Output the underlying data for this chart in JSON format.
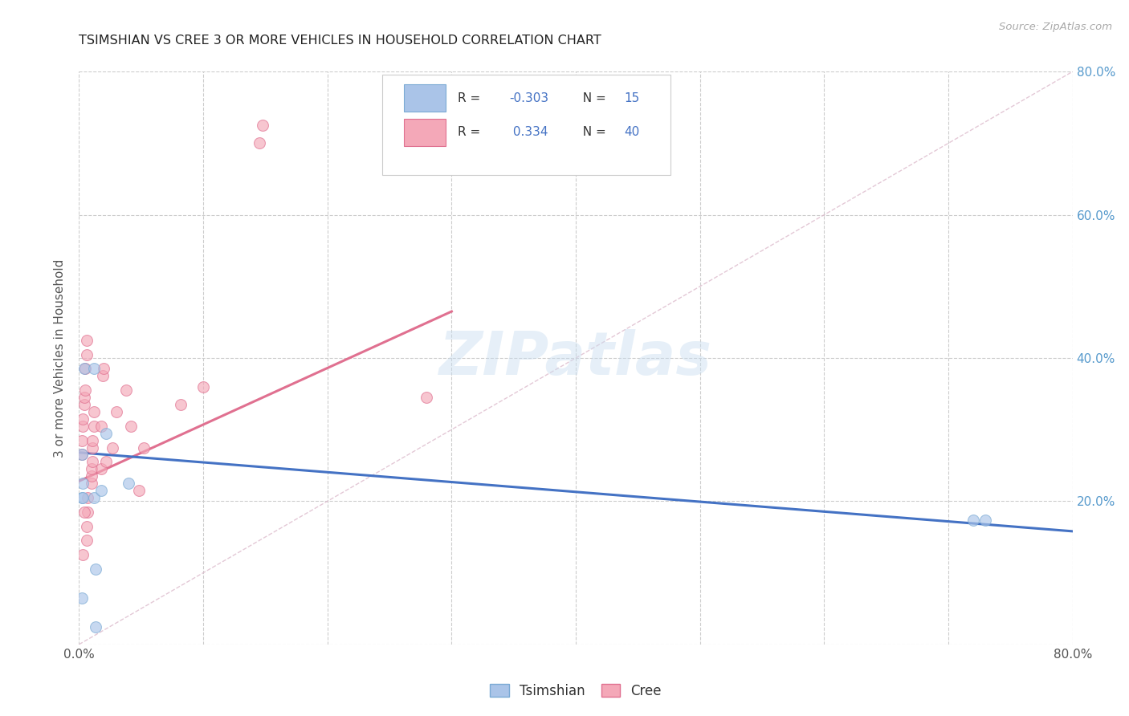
{
  "title": "TSIMSHIAN VS CREE 3 OR MORE VEHICLES IN HOUSEHOLD CORRELATION CHART",
  "source": "Source: ZipAtlas.com",
  "ylabel": "3 or more Vehicles in Household",
  "watermark": "ZIPatlas",
  "xlim": [
    0.0,
    0.8
  ],
  "ylim": [
    0.0,
    0.8
  ],
  "xticks": [
    0.0,
    0.1,
    0.2,
    0.3,
    0.4,
    0.5,
    0.6,
    0.7,
    0.8
  ],
  "yticks": [
    0.0,
    0.2,
    0.4,
    0.6,
    0.8
  ],
  "grid_color": "#cccccc",
  "tsimshian_color": "#aac4e8",
  "tsimshian_edge_color": "#7aaad4",
  "cree_color": "#f4a8b8",
  "cree_edge_color": "#e07090",
  "tsimshian_R": -0.303,
  "tsimshian_N": 15,
  "cree_R": 0.334,
  "cree_N": 40,
  "tsimshian_line_color": "#4472c4",
  "cree_line_color": "#e07090",
  "diagonal_color": "#ddbbcc",
  "tsimshian_points_x": [
    0.002,
    0.002,
    0.003,
    0.003,
    0.004,
    0.012,
    0.012,
    0.018,
    0.022,
    0.04,
    0.72,
    0.73,
    0.013,
    0.002,
    0.013
  ],
  "tsimshian_points_y": [
    0.265,
    0.205,
    0.205,
    0.225,
    0.385,
    0.385,
    0.205,
    0.215,
    0.295,
    0.225,
    0.173,
    0.173,
    0.105,
    0.065,
    0.025
  ],
  "cree_points_x": [
    0.002,
    0.002,
    0.003,
    0.003,
    0.004,
    0.004,
    0.005,
    0.005,
    0.006,
    0.006,
    0.006,
    0.006,
    0.007,
    0.007,
    0.01,
    0.01,
    0.01,
    0.011,
    0.011,
    0.011,
    0.012,
    0.012,
    0.018,
    0.018,
    0.019,
    0.02,
    0.022,
    0.027,
    0.03,
    0.038,
    0.042,
    0.048,
    0.052,
    0.082,
    0.1,
    0.145,
    0.148,
    0.28,
    0.003,
    0.004
  ],
  "cree_points_y": [
    0.265,
    0.285,
    0.305,
    0.315,
    0.335,
    0.345,
    0.355,
    0.385,
    0.405,
    0.425,
    0.145,
    0.165,
    0.185,
    0.205,
    0.225,
    0.235,
    0.245,
    0.255,
    0.275,
    0.285,
    0.305,
    0.325,
    0.245,
    0.305,
    0.375,
    0.385,
    0.255,
    0.275,
    0.325,
    0.355,
    0.305,
    0.215,
    0.275,
    0.335,
    0.36,
    0.7,
    0.725,
    0.345,
    0.125,
    0.185
  ],
  "marker_size": 100,
  "alpha": 0.65,
  "tsimshian_line_x": [
    0.0,
    0.8
  ],
  "tsimshian_line_y": [
    0.268,
    0.158
  ],
  "cree_line_x": [
    0.0,
    0.3
  ],
  "cree_line_y": [
    0.228,
    0.465
  ],
  "diagonal_line_x": [
    0.0,
    0.8
  ],
  "diagonal_line_y": [
    0.0,
    0.8
  ],
  "background_color": "#ffffff",
  "right_tick_color": "#5599cc",
  "legend_R_color": "#4472c4",
  "legend_N_color": "#4472c4"
}
